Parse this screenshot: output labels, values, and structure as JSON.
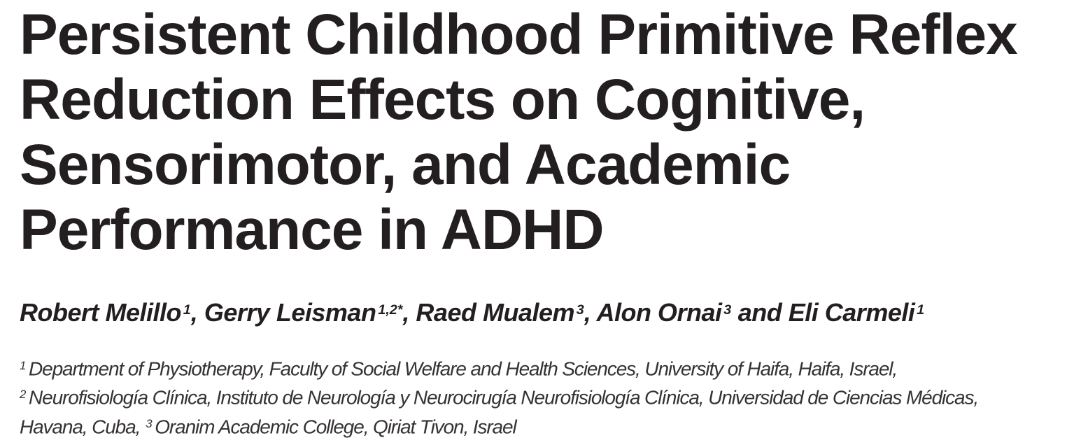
{
  "paper": {
    "title_lines": [
      "Persistent Childhood Primitive Reflex",
      "Reduction Effects on Cognitive,",
      "Sensorimotor, and Academic",
      "Performance in ADHD"
    ],
    "authors": [
      {
        "name": "Robert Melillo",
        "sup": "1",
        "sep": ", "
      },
      {
        "name": "Gerry Leisman",
        "sup": "1,2*",
        "sep": ", "
      },
      {
        "name": "Raed Mualem",
        "sup": "3",
        "sep": ", "
      },
      {
        "name": "Alon Ornai",
        "sup": "3",
        "sep": " and "
      },
      {
        "name": "Eli Carmeli",
        "sup": "1",
        "sep": ""
      }
    ],
    "affiliation_lines": [
      {
        "pre": "",
        "sup": "1",
        "text": "Department of Physiotherapy, Faculty of Social Welfare and Health Sciences, University of Haifa, Haifa, Israel,"
      },
      {
        "pre": "",
        "sup": "2",
        "text": "Neurofisiología Clínica, Instituto de Neurología y Neurocirugía Neurofisiología Clínica, Universidad de Ciencias Médicas,"
      },
      {
        "pre": "Havana, Cuba, ",
        "sup": "3",
        "text": "Oranim Academic College, Qiriat Tivon, Israel"
      }
    ],
    "colors": {
      "text": "#231f20",
      "background": "#ffffff"
    }
  }
}
